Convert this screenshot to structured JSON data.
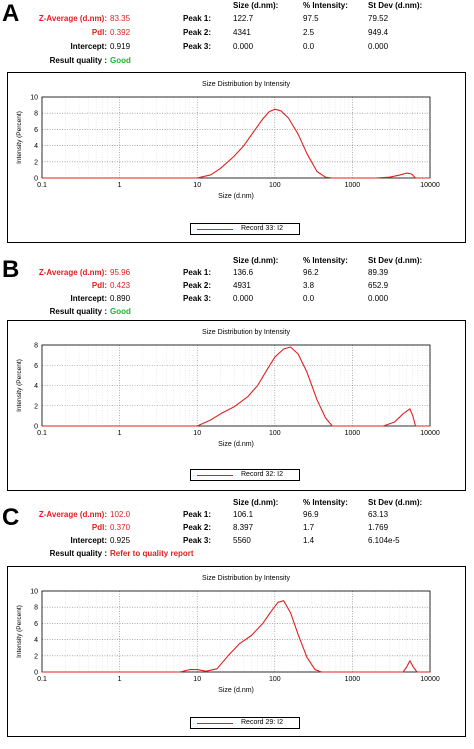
{
  "headers": {
    "size": "Size (d.nm):",
    "intensity": "% Intensity:",
    "stdev": "St Dev (d.nm):"
  },
  "labels": {
    "zavg": "Z-Average (d.nm):",
    "pdi": "Pdl:",
    "intercept": "Intercept:",
    "quality": "Result quality :",
    "peak1": "Peak 1:",
    "peak2": "Peak 2:",
    "peak3": "Peak 3:"
  },
  "colors": {
    "red": "#e02020",
    "green": "#18b830",
    "grid": "#7a7a7a"
  },
  "panels": [
    {
      "letter": "A",
      "zavg": "83.35",
      "pdi": "0.392",
      "intercept": "0.919",
      "quality": "Good",
      "quality_color": "green",
      "peaks": [
        {
          "size": "122.7",
          "intensity": "97.5",
          "stdev": "79.52"
        },
        {
          "size": "4341",
          "intensity": "2.5",
          "stdev": "949.4"
        },
        {
          "size": "0.000",
          "intensity": "0.0",
          "stdev": "0.000"
        }
      ],
      "legend": "Record 33: I2"
    },
    {
      "letter": "B",
      "zavg": "95.96",
      "pdi": "0.423",
      "intercept": "0.890",
      "quality": "Good",
      "quality_color": "green",
      "peaks": [
        {
          "size": "136.6",
          "intensity": "96.2",
          "stdev": "89.39"
        },
        {
          "size": "4931",
          "intensity": "3.8",
          "stdev": "652.9"
        },
        {
          "size": "0.000",
          "intensity": "0.0",
          "stdev": "0.000"
        }
      ],
      "legend": "Record 32: I2"
    },
    {
      "letter": "C",
      "zavg": "102.0",
      "pdi": "0.370",
      "intercept": "0.925",
      "quality": "Refer to quality report",
      "quality_color": "red",
      "peaks": [
        {
          "size": "106.1",
          "intensity": "96.9",
          "stdev": "63.13"
        },
        {
          "size": "8.397",
          "intensity": "1.7",
          "stdev": "1.769"
        },
        {
          "size": "5560",
          "intensity": "1.4",
          "stdev": "6.104e-5"
        }
      ],
      "legend": "Record 29: I2"
    }
  ],
  "chart_data": [
    {
      "type": "line",
      "title": "Size Distribution by Intensity",
      "xlabel": "Size (d.nm)",
      "ylabel": "Intensity (Percent)",
      "xscale": "log",
      "xlim": [
        0.1,
        10000
      ],
      "ylim": [
        0,
        10
      ],
      "xticks": [
        "0.1",
        "1",
        "10",
        "100",
        "1000",
        "10000"
      ],
      "yticks": [
        "0",
        "2",
        "4",
        "6",
        "8",
        "10"
      ],
      "grid": true,
      "legend_position": "bottom-center",
      "series": [
        {
          "name": "Record 33: I2",
          "color": "#e02020",
          "x": [
            0.1,
            10,
            15,
            20,
            30,
            40,
            55,
            70,
            85,
            100,
            120,
            150,
            200,
            260,
            350,
            450,
            550,
            800,
            2000,
            3000,
            4000,
            5000,
            5800,
            6500,
            10000
          ],
          "y": [
            0,
            0,
            0.4,
            1.2,
            2.7,
            4.0,
            5.9,
            7.3,
            8.2,
            8.5,
            8.3,
            7.4,
            5.4,
            3.0,
            0.8,
            0.1,
            0,
            0,
            0,
            0.1,
            0.35,
            0.6,
            0.5,
            0,
            0
          ]
        }
      ]
    },
    {
      "type": "line",
      "title": "Size Distribution by Intensity",
      "xlabel": "Size (d.nm)",
      "ylabel": "Intensity (Percent)",
      "xscale": "log",
      "xlim": [
        0.1,
        10000
      ],
      "ylim": [
        0,
        8
      ],
      "xticks": [
        "0.1",
        "1",
        "10",
        "100",
        "1000",
        "10000"
      ],
      "yticks": [
        "0",
        "2",
        "4",
        "6",
        "8"
      ],
      "grid": true,
      "legend_position": "bottom-center",
      "series": [
        {
          "name": "Record 32: I2",
          "color": "#e02020",
          "x": [
            0.1,
            10,
            15,
            20,
            30,
            45,
            60,
            80,
            100,
            130,
            160,
            200,
            260,
            350,
            450,
            550,
            1000,
            2500,
            3500,
            4500,
            5500,
            6000,
            6500,
            10000
          ],
          "y": [
            0,
            0,
            0.6,
            1.2,
            1.9,
            2.9,
            4.0,
            5.6,
            6.8,
            7.6,
            7.8,
            7.1,
            5.3,
            2.6,
            0.8,
            0,
            0,
            0,
            0.4,
            1.2,
            1.7,
            1.0,
            0,
            0
          ]
        }
      ]
    },
    {
      "type": "line",
      "title": "Size Distribution by Intensity",
      "xlabel": "Size (d.nm)",
      "ylabel": "Intensity (Percent)",
      "xscale": "log",
      "xlim": [
        0.1,
        10000
      ],
      "ylim": [
        0,
        10
      ],
      "xticks": [
        "0.1",
        "1",
        "10",
        "100",
        "1000",
        "10000"
      ],
      "yticks": [
        "0",
        "2",
        "4",
        "6",
        "8",
        "10"
      ],
      "grid": true,
      "legend_position": "bottom-center",
      "series": [
        {
          "name": "Record 29: I2",
          "color": "#e02020",
          "x": [
            0.1,
            6,
            8,
            10,
            13,
            18,
            25,
            35,
            50,
            70,
            90,
            110,
            130,
            160,
            200,
            260,
            330,
            400,
            1000,
            4500,
            5000,
            5500,
            6100,
            6800,
            10000
          ],
          "y": [
            0,
            0,
            0.3,
            0.3,
            0.1,
            0.4,
            2.0,
            3.5,
            4.5,
            6.0,
            7.5,
            8.6,
            8.8,
            7.3,
            4.6,
            1.8,
            0.3,
            0,
            0,
            0,
            0.6,
            1.4,
            0.6,
            0,
            0
          ]
        }
      ]
    }
  ]
}
